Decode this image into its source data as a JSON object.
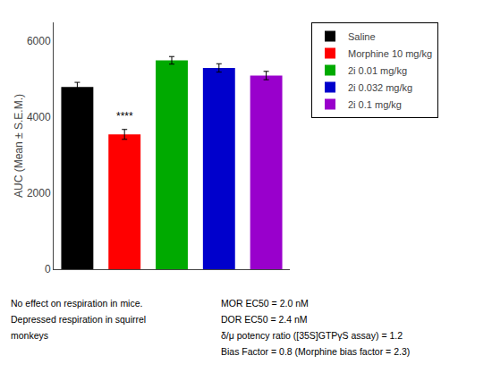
{
  "chart_data": {
    "type": "bar",
    "categories": [
      "Saline",
      "Morphine 10 mg/kg",
      "2i 0.01 mg/kg",
      "2i 0.032 mg/kg",
      "2i 0.1 mg/kg"
    ],
    "values": [
      4800,
      3550,
      5500,
      5300,
      5100
    ],
    "errors": [
      120,
      130,
      100,
      110,
      110
    ],
    "colors": [
      "#000000",
      "#ff0000",
      "#00aa00",
      "#0000cc",
      "#9900cc"
    ],
    "ylabel": "AUC (Mean ± S.E.M.)",
    "ylim": [
      0,
      6500
    ],
    "yticks": [
      0,
      2000,
      4000,
      6000
    ],
    "grid": false,
    "legend": "upper right",
    "tick_labels": "y",
    "annotations": [
      {
        "text": "****",
        "category": "Morphine 10 mg/kg"
      },
      {
        "lines": [
          "No effect on respiration in mice.",
          "Depressed respiration in squirrel",
          "monkeys"
        ]
      },
      {
        "lines": [
          "MOR EC50 = 2.0 nM",
          "DOR EC50 = 2.4 nM",
          "δ/μ potency ratio ([35S]GTPγS assay) = 1.2",
          "Bias Factor = 0.8 (Morphine bias factor = 2.3)"
        ]
      }
    ]
  }
}
